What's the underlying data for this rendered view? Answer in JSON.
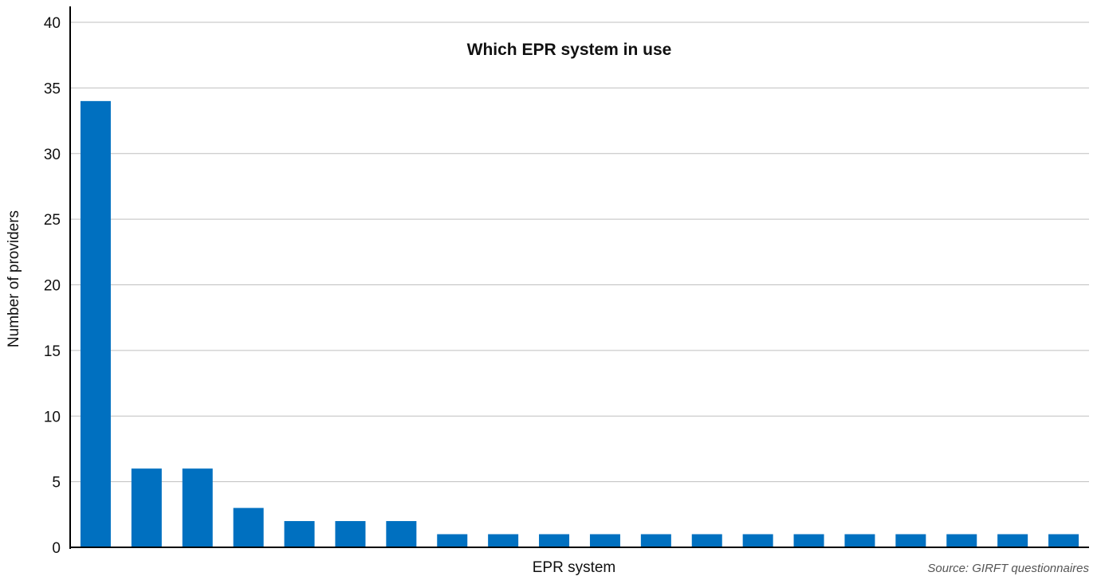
{
  "chart_data": {
    "type": "bar",
    "title": "Which EPR system in use",
    "xlabel": "EPR system",
    "ylabel": "Number of providers",
    "source": "Source: GIRFT questionnaires",
    "ylim": [
      0,
      40
    ],
    "yticks": [
      0,
      5,
      10,
      15,
      20,
      25,
      30,
      35,
      40
    ],
    "yticklabels": [
      "0",
      "5",
      "10",
      "15",
      "20",
      "25",
      "30",
      "35",
      "40"
    ],
    "grid": true,
    "bar_color": "#0070c0",
    "gridline_color": "#bfbfbf",
    "categories": [
      "",
      "",
      "",
      "",
      "",
      "",
      "",
      "",
      "",
      "",
      "",
      "",
      "",
      "",
      "",
      "",
      "",
      "",
      "",
      ""
    ],
    "values": [
      34,
      6,
      6,
      3,
      2,
      2,
      2,
      1,
      1,
      1,
      1,
      1,
      1,
      1,
      1,
      1,
      1,
      1,
      1,
      1
    ]
  }
}
